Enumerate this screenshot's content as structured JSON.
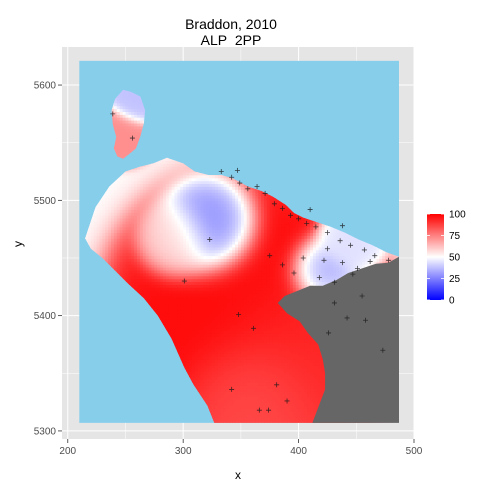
{
  "chart_data": {
    "type": "heatmap",
    "title": "Braddon, 2010",
    "subtitle": "ALP_2PP",
    "xlabel": "x",
    "ylabel": "y",
    "xlim": [
      195,
      500
    ],
    "ylim": [
      5293,
      5633
    ],
    "x_ticks": [
      200,
      300,
      400,
      500
    ],
    "y_ticks": [
      5300,
      5400,
      5500,
      5600
    ],
    "raster_extent": {
      "x": [
        210,
        487
      ],
      "y": [
        5307,
        5621
      ]
    },
    "grid": true,
    "legend": {
      "title": "",
      "placement": "right",
      "breaks": [
        0,
        25,
        50,
        75,
        100
      ],
      "scale": [
        {
          "value": 0,
          "color": "#0000ff"
        },
        {
          "value": 50,
          "color": "#ffffff"
        },
        {
          "value": 100,
          "color": "#ff0000"
        }
      ]
    },
    "colors": {
      "water": "#87ceeb",
      "outside_electorate": "#666666",
      "panel_background": "#e5e5e5",
      "grid": "#ffffff",
      "low": "#0000ff",
      "mid": "#ffffff",
      "high": "#ff0000"
    },
    "polling_places": [
      [
        342,
        5520
      ],
      [
        349,
        5515
      ],
      [
        356,
        5510
      ],
      [
        364,
        5512
      ],
      [
        371,
        5506
      ],
      [
        379,
        5497
      ],
      [
        386,
        5493
      ],
      [
        393,
        5487
      ],
      [
        400,
        5484
      ],
      [
        407,
        5480
      ],
      [
        415,
        5477
      ],
      [
        425,
        5472
      ],
      [
        436,
        5465
      ],
      [
        445,
        5461
      ],
      [
        457,
        5457
      ],
      [
        466,
        5452
      ],
      [
        478,
        5448
      ],
      [
        404,
        5450
      ],
      [
        422,
        5448
      ],
      [
        438,
        5446
      ],
      [
        451,
        5441
      ],
      [
        462,
        5447
      ],
      [
        396,
        5437
      ],
      [
        386,
        5444
      ],
      [
        375,
        5452
      ],
      [
        418,
        5433
      ],
      [
        431,
        5429
      ],
      [
        447,
        5436
      ],
      [
        455,
        5417
      ],
      [
        431,
        5411
      ],
      [
        442,
        5398
      ],
      [
        426,
        5385
      ],
      [
        458,
        5396
      ],
      [
        473,
        5370
      ],
      [
        381,
        5340
      ],
      [
        366,
        5318
      ],
      [
        374,
        5318
      ],
      [
        342,
        5336
      ],
      [
        390,
        5326
      ],
      [
        348,
        5401
      ],
      [
        361,
        5389
      ],
      [
        301,
        5430
      ],
      [
        323,
        5466
      ],
      [
        239,
        5575
      ],
      [
        256,
        5554
      ],
      [
        333,
        5525
      ],
      [
        347,
        5526
      ],
      [
        410,
        5492
      ],
      [
        425,
        5458
      ],
      [
        438,
        5478
      ]
    ],
    "regions": {
      "mainland": [
        [
          215,
          5467
        ],
        [
          224,
          5494
        ],
        [
          236,
          5512
        ],
        [
          250,
          5525
        ],
        [
          262,
          5529
        ],
        [
          274,
          5532
        ],
        [
          286,
          5537
        ],
        [
          300,
          5532
        ],
        [
          310,
          5525
        ],
        [
          322,
          5522
        ],
        [
          333,
          5522
        ],
        [
          343,
          5519
        ],
        [
          356,
          5512
        ],
        [
          368,
          5508
        ],
        [
          378,
          5503
        ],
        [
          389,
          5496
        ],
        [
          396,
          5489
        ],
        [
          404,
          5485
        ],
        [
          416,
          5481
        ],
        [
          428,
          5477
        ],
        [
          440,
          5472
        ],
        [
          452,
          5466
        ],
        [
          464,
          5461
        ],
        [
          476,
          5455
        ],
        [
          487,
          5451
        ],
        [
          487,
          5307
        ],
        [
          327,
          5307
        ],
        [
          321,
          5322
        ],
        [
          309,
          5340
        ],
        [
          301,
          5355
        ],
        [
          290,
          5380
        ],
        [
          278,
          5400
        ],
        [
          266,
          5415
        ],
        [
          252,
          5428
        ],
        [
          242,
          5438
        ],
        [
          230,
          5450
        ],
        [
          220,
          5458
        ]
      ],
      "island": [
        [
          255,
          5594
        ],
        [
          263,
          5590
        ],
        [
          267,
          5578
        ],
        [
          266,
          5567
        ],
        [
          263,
          5556
        ],
        [
          259,
          5545
        ],
        [
          253,
          5540
        ],
        [
          248,
          5536
        ],
        [
          243,
          5538
        ],
        [
          240,
          5545
        ],
        [
          242,
          5555
        ],
        [
          239,
          5566
        ],
        [
          238,
          5578
        ],
        [
          241,
          5588
        ],
        [
          248,
          5596
        ]
      ],
      "outside": [
        [
          487,
          5451
        ],
        [
          478,
          5446
        ],
        [
          467,
          5445
        ],
        [
          455,
          5441
        ],
        [
          443,
          5437
        ],
        [
          433,
          5431
        ],
        [
          421,
          5426
        ],
        [
          410,
          5426
        ],
        [
          398,
          5421
        ],
        [
          388,
          5417
        ],
        [
          382,
          5411
        ],
        [
          390,
          5402
        ],
        [
          401,
          5395
        ],
        [
          408,
          5385
        ],
        [
          417,
          5375
        ],
        [
          421,
          5362
        ],
        [
          423,
          5350
        ],
        [
          423,
          5336
        ],
        [
          418,
          5323
        ],
        [
          412,
          5307
        ],
        [
          487,
          5307
        ]
      ]
    },
    "hotspots": [
      {
        "x": 324,
        "y": 5466,
        "value": 25,
        "radius": 22
      },
      {
        "x": 418,
        "y": 5432,
        "value": 30,
        "radius": 18
      },
      {
        "x": 352,
        "y": 5402,
        "value": 98,
        "radius": 48
      },
      {
        "x": 388,
        "y": 5377,
        "value": 92,
        "radius": 40
      },
      {
        "x": 363,
        "y": 5345,
        "value": 85,
        "radius": 32
      },
      {
        "x": 248,
        "y": 5558,
        "value": 72,
        "radius": 12
      },
      {
        "x": 257,
        "y": 5580,
        "value": 38,
        "radius": 10
      },
      {
        "x": 440,
        "y": 5460,
        "value": 44,
        "radius": 14
      },
      {
        "x": 300,
        "y": 5460,
        "value": 58,
        "radius": 18
      }
    ]
  }
}
